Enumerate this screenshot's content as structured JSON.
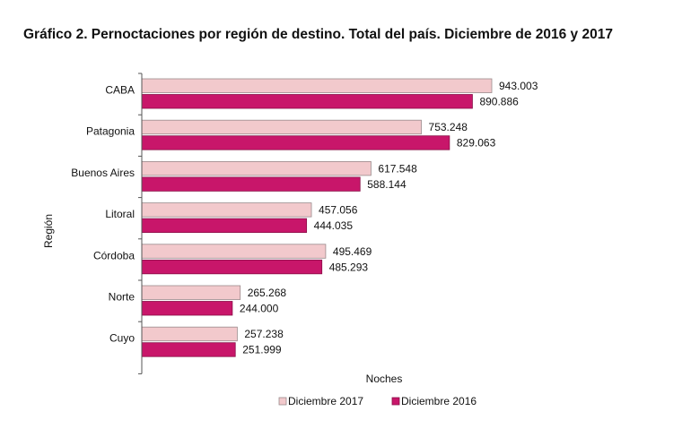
{
  "chart_data": {
    "type": "bar",
    "orientation": "horizontal",
    "title": "Gráfico 2.   Pernoctaciones por región de destino. Total del país. Diciembre de 2016 y 2017",
    "xlabel": "Noches",
    "ylabel": "Región",
    "categories": [
      "CABA",
      "Patagonia",
      "Buenos Aires",
      "Litoral",
      "Córdoba",
      "Norte",
      "Cuyo"
    ],
    "series": [
      {
        "name": "Diciembre 2017",
        "color": "#f2c9cc",
        "values": [
          943003,
          753248,
          617548,
          457056,
          495469,
          265268,
          257238
        ],
        "labels": [
          "943.003",
          "753.248",
          "617.548",
          "457.056",
          "495.469",
          "265.268",
          "257.238"
        ]
      },
      {
        "name": "Diciembre 2016",
        "color": "#c8166a",
        "values": [
          890886,
          829063,
          588144,
          444035,
          485293,
          244000,
          251999
        ],
        "labels": [
          "890.886",
          "829.063",
          "588.144",
          "444.035",
          "485.293",
          "244.000",
          "251.999"
        ]
      }
    ],
    "xlim": [
      0,
      1000000
    ],
    "grid": false,
    "legend_position": "bottom"
  }
}
